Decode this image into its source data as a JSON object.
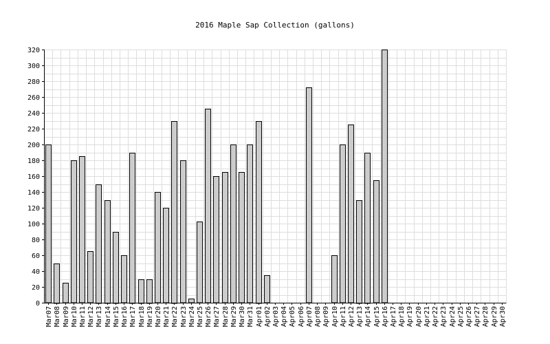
{
  "chart_data": {
    "type": "bar",
    "title": "2016 Maple Sap Collection (gallons)",
    "xlabel": "",
    "ylabel": "",
    "ylim": [
      0,
      320
    ],
    "ytick_step": 20,
    "grid": true,
    "legend": "none",
    "colors": {
      "bar_fill": "#cccccc",
      "bar_stroke": "#000000",
      "grid": "#dddddd",
      "axis": "#000000"
    },
    "categories": [
      "Mar07",
      "Mar08",
      "Mar09",
      "Mar10",
      "Mar11",
      "Mar12",
      "Mar13",
      "Mar14",
      "Mar15",
      "Mar16",
      "Mar17",
      "Mar18",
      "Mar19",
      "Mar20",
      "Mar21",
      "Mar22",
      "Mar23",
      "Mar24",
      "Mar25",
      "Mar26",
      "Mar27",
      "Mar28",
      "Mar29",
      "Mar30",
      "Mar31",
      "Apr01",
      "Apr02",
      "Apr03",
      "Apr04",
      "Apr05",
      "Apr06",
      "Apr07",
      "Apr08",
      "Apr09",
      "Apr10",
      "Apr11",
      "Apr12",
      "Apr13",
      "Apr14",
      "Apr15",
      "Apr16",
      "Apr17",
      "Apr18",
      "Apr19",
      "Apr20",
      "Apr21",
      "Apr22",
      "Apr23",
      "Apr24",
      "Apr25",
      "Apr26",
      "Apr27",
      "Apr28",
      "Apr29",
      "Apr30"
    ],
    "values": [
      200,
      50,
      25,
      180,
      185,
      65,
      150,
      130,
      90,
      60,
      190,
      30,
      30,
      140,
      120,
      230,
      180,
      5,
      103,
      245,
      160,
      165,
      200,
      165,
      200,
      230,
      35,
      0,
      0,
      0,
      0,
      272,
      0,
      0,
      60,
      200,
      225,
      130,
      190,
      155,
      320,
      0,
      0,
      0,
      0,
      0,
      0,
      0,
      0,
      0,
      0,
      0,
      0,
      0,
      0
    ]
  }
}
